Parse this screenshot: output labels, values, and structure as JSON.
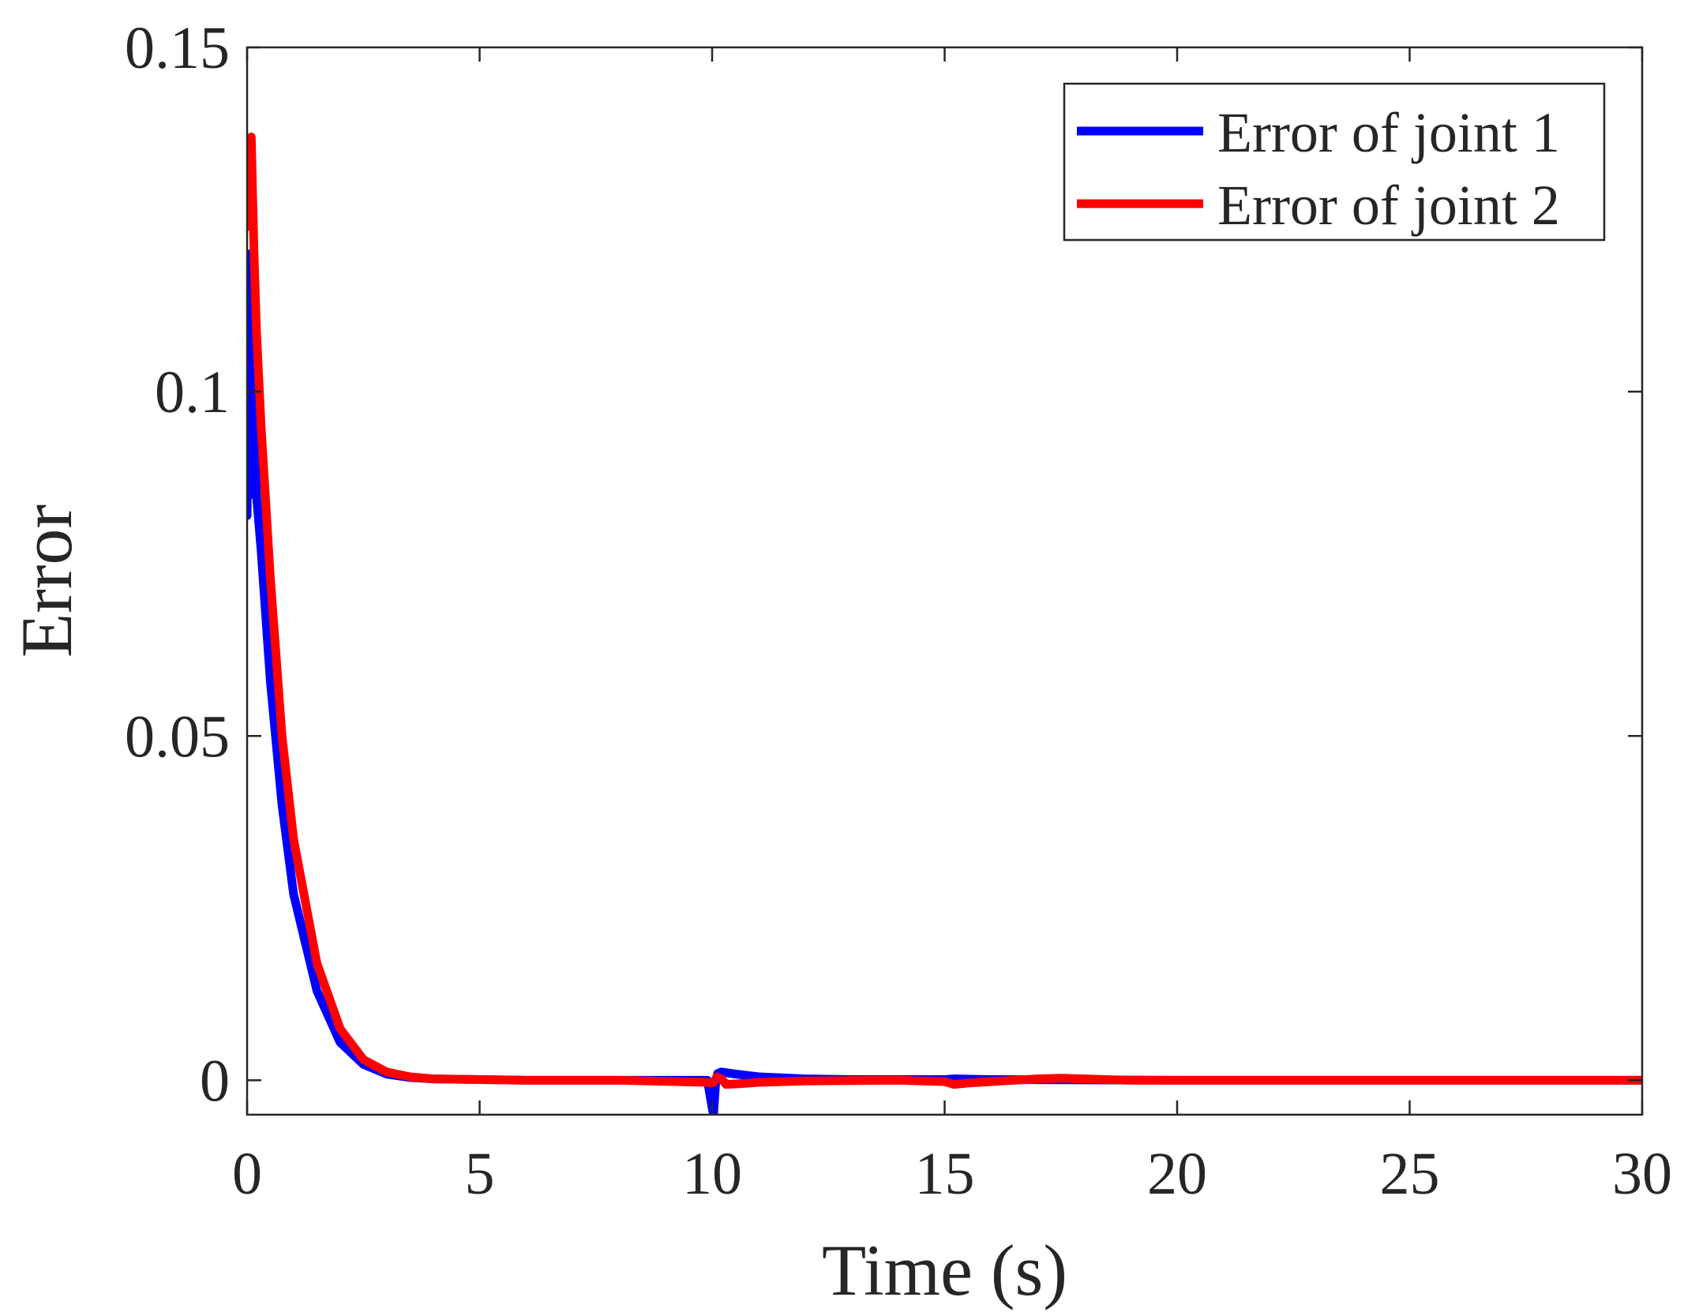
{
  "chart_data": {
    "type": "line",
    "title": "",
    "xlabel": "Time (s)",
    "ylabel": "Error",
    "xlim": [
      0,
      30
    ],
    "ylim": [
      -0.005,
      0.15
    ],
    "xticks": [
      0,
      5,
      10,
      15,
      20,
      25,
      30
    ],
    "xtick_labels": [
      "0",
      "5",
      "10",
      "15",
      "20",
      "25",
      "30"
    ],
    "yticks": [
      0,
      0.05,
      0.1,
      0.15
    ],
    "ytick_labels": [
      "0",
      "0.05",
      "0.1",
      "0.15"
    ],
    "grid": false,
    "legend_position": "top-right",
    "series": [
      {
        "name": "Error of joint 1",
        "color": "#0000ff",
        "x": [
          0,
          0.03,
          0.06,
          0.09,
          0.12,
          0.15,
          0.2,
          0.3,
          0.5,
          0.75,
          1.0,
          1.5,
          2.0,
          2.5,
          3.0,
          3.5,
          4.0,
          5.0,
          6.0,
          8.0,
          9.9,
          10.0,
          10.03,
          10.05,
          10.08,
          10.12,
          10.2,
          10.5,
          11.0,
          12.0,
          13.0,
          15.0,
          15.2,
          16.0,
          20.0,
          25.0,
          30.0
        ],
        "y": [
          0.082,
          0.12,
          0.085,
          0.112,
          0.088,
          0.1,
          0.085,
          0.077,
          0.058,
          0.04,
          0.027,
          0.013,
          0.0055,
          0.0023,
          0.0009,
          0.0004,
          0.0002,
          0.0001,
          0.0,
          0.0,
          0.0,
          -0.004,
          -0.005,
          -0.003,
          0.0,
          0.001,
          0.0012,
          0.0009,
          0.0005,
          0.0002,
          0.0001,
          0.0001,
          0.0002,
          0.0001,
          0.0,
          0.0,
          0.0
        ]
      },
      {
        "name": "Error of joint 2",
        "color": "#ff0000",
        "x": [
          0,
          0.03,
          0.06,
          0.09,
          0.12,
          0.15,
          0.2,
          0.3,
          0.5,
          0.75,
          1.0,
          1.5,
          2.0,
          2.5,
          3.0,
          3.5,
          4.0,
          5.0,
          6.0,
          8.0,
          9.9,
          10.0,
          10.05,
          10.1,
          10.2,
          10.3,
          10.6,
          11.0,
          12.0,
          14.0,
          15.0,
          15.2,
          15.5,
          16.0,
          17.0,
          17.5,
          18.0,
          19.0,
          20.0,
          25.0,
          30.0
        ],
        "y": [
          0.124,
          0.136,
          0.13,
          0.137,
          0.128,
          0.12,
          0.109,
          0.095,
          0.073,
          0.05,
          0.035,
          0.017,
          0.0075,
          0.003,
          0.0012,
          0.0005,
          0.0002,
          0.0001,
          0.0,
          0.0,
          -0.0003,
          -0.0004,
          -0.0002,
          0.0005,
          0.0002,
          -0.0006,
          -0.0005,
          -0.0003,
          -0.0001,
          0.0,
          -0.0002,
          -0.0006,
          -0.0004,
          -0.0002,
          0.0002,
          0.0003,
          0.0002,
          0.0,
          0.0,
          0.0,
          0.0
        ]
      }
    ]
  }
}
